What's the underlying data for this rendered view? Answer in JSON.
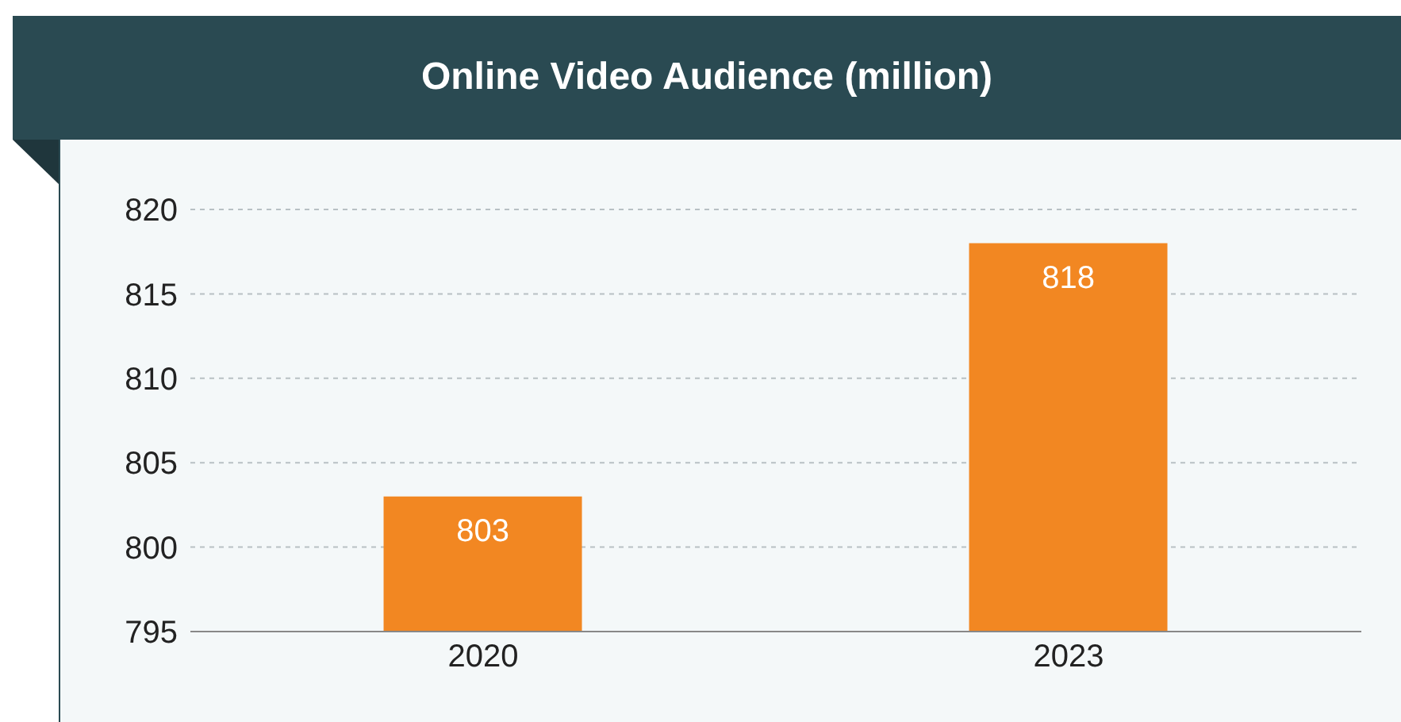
{
  "chart_data": {
    "type": "bar",
    "title": "Online Video Audience (million)",
    "categories": [
      "2020",
      "2023"
    ],
    "values": [
      803,
      818
    ],
    "color": "#f28722",
    "ylim": [
      795,
      820
    ],
    "yticks": [
      795,
      800,
      805,
      810,
      815,
      820
    ],
    "grid": "y",
    "data_labels": true
  }
}
